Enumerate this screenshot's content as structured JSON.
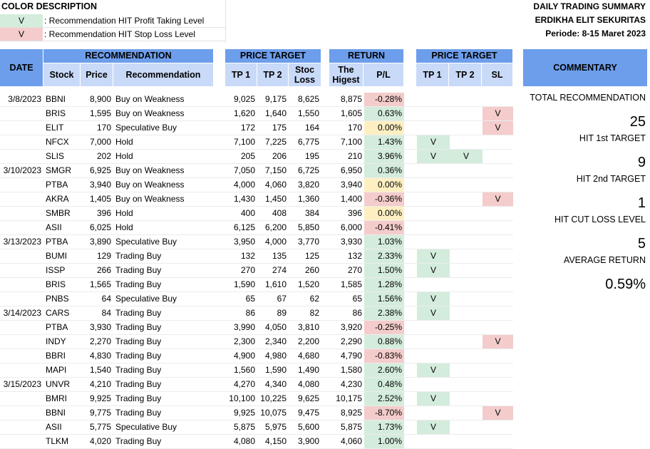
{
  "legend": {
    "title": "COLOR DESCRIPTION",
    "items": [
      {
        "mark": "V",
        "text": ": Recommendation HIT Profit Taking Level",
        "color": "#d4ecdc"
      },
      {
        "mark": "V",
        "text": ": Recommendation HIT Stop Loss Level",
        "color": "#f4cccc"
      }
    ]
  },
  "report": {
    "title": "DAILY TRADING SUMMARY",
    "company": "ERDIKHA ELIT SEKURITAS",
    "period": "Periode: 8-15 Maret 2023"
  },
  "headers": {
    "date": "DATE",
    "recommendation": "RECOMMENDATION",
    "stock": "Stock",
    "price": "Price",
    "rec": "Recommendation",
    "price_target": "PRICE TARGET",
    "tp1": "TP 1",
    "tp2": "TP 2",
    "stop_loss": "Stoc Loss",
    "return": "RETURN",
    "highest": "The Higest",
    "pl": "P/L",
    "price_target2": "PRICE TARGET",
    "tp1b": "TP 1",
    "tp2b": "TP 2",
    "sl": "SL",
    "commentary": "COMMENTARY"
  },
  "rows": [
    {
      "date": "3/8/2023",
      "stock": "BBNI",
      "price": "8,900",
      "rec": "Buy on Weakness",
      "tp1": "9,025",
      "tp2": "9,175",
      "sl": "8,625",
      "high": "8,875",
      "pl": "-0.28%",
      "plc": "red",
      "h1": "",
      "h2": "",
      "hs": ""
    },
    {
      "date": "",
      "stock": "BRIS",
      "price": "1,595",
      "rec": "Buy on Weakness",
      "tp1": "1,620",
      "tp2": "1,640",
      "sl": "1,550",
      "high": "1,605",
      "pl": "0.63%",
      "plc": "green",
      "h1": "",
      "h2": "",
      "hs": "V"
    },
    {
      "date": "",
      "stock": "ELIT",
      "price": "170",
      "rec": "Speculative Buy",
      "tp1": "172",
      "tp2": "175",
      "sl": "164",
      "high": "170",
      "pl": "0.00%",
      "plc": "yellow",
      "h1": "",
      "h2": "",
      "hs": "V"
    },
    {
      "date": "",
      "stock": "NFCX",
      "price": "7,000",
      "rec": "Hold",
      "tp1": "7,100",
      "tp2": "7,225",
      "sl": "6,775",
      "high": "7,100",
      "pl": "1.43%",
      "plc": "green",
      "h1": "V",
      "h2": "",
      "hs": ""
    },
    {
      "date": "",
      "stock": "SLIS",
      "price": "202",
      "rec": "Hold",
      "tp1": "205",
      "tp2": "206",
      "sl": "195",
      "high": "210",
      "pl": "3.96%",
      "plc": "green",
      "h1": "V",
      "h2": "V",
      "hs": ""
    },
    {
      "date": "3/10/2023",
      "stock": "SMGR",
      "price": "6,925",
      "rec": "Buy on Weakness",
      "tp1": "7,050",
      "tp2": "7,150",
      "sl": "6,725",
      "high": "6,950",
      "pl": "0.36%",
      "plc": "green",
      "h1": "",
      "h2": "",
      "hs": ""
    },
    {
      "date": "",
      "stock": "PTBA",
      "price": "3,940",
      "rec": "Buy on Weakness",
      "tp1": "4,000",
      "tp2": "4,060",
      "sl": "3,820",
      "high": "3,940",
      "pl": "0.00%",
      "plc": "yellow",
      "h1": "",
      "h2": "",
      "hs": ""
    },
    {
      "date": "",
      "stock": "AKRA",
      "price": "1,405",
      "rec": "Buy on Weakness",
      "tp1": "1,430",
      "tp2": "1,450",
      "sl": "1,360",
      "high": "1,400",
      "pl": "-0.36%",
      "plc": "red",
      "h1": "",
      "h2": "",
      "hs": "V"
    },
    {
      "date": "",
      "stock": "SMBR",
      "price": "396",
      "rec": "Hold",
      "tp1": "400",
      "tp2": "408",
      "sl": "384",
      "high": "396",
      "pl": "0.00%",
      "plc": "yellow",
      "h1": "",
      "h2": "",
      "hs": ""
    },
    {
      "date": "",
      "stock": "ASII",
      "price": "6,025",
      "rec": "Hold",
      "tp1": "6,125",
      "tp2": "6,200",
      "sl": "5,850",
      "high": "6,000",
      "pl": "-0.41%",
      "plc": "red",
      "h1": "",
      "h2": "",
      "hs": ""
    },
    {
      "date": "3/13/2023",
      "stock": "PTBA",
      "price": "3,890",
      "rec": "Speculative Buy",
      "tp1": "3,950",
      "tp2": "4,000",
      "sl": "3,770",
      "high": "3,930",
      "pl": "1.03%",
      "plc": "green",
      "h1": "",
      "h2": "",
      "hs": ""
    },
    {
      "date": "",
      "stock": "BUMI",
      "price": "129",
      "rec": "Trading Buy",
      "tp1": "132",
      "tp2": "135",
      "sl": "125",
      "high": "132",
      "pl": "2.33%",
      "plc": "green",
      "h1": "V",
      "h2": "",
      "hs": ""
    },
    {
      "date": "",
      "stock": "ISSP",
      "price": "266",
      "rec": "Trading Buy",
      "tp1": "270",
      "tp2": "274",
      "sl": "260",
      "high": "270",
      "pl": "1.50%",
      "plc": "green",
      "h1": "V",
      "h2": "",
      "hs": ""
    },
    {
      "date": "",
      "stock": "BRIS",
      "price": "1,565",
      "rec": "Trading Buy",
      "tp1": "1,590",
      "tp2": "1,610",
      "sl": "1,520",
      "high": "1,585",
      "pl": "1.28%",
      "plc": "green",
      "h1": "",
      "h2": "",
      "hs": ""
    },
    {
      "date": "",
      "stock": "PNBS",
      "price": "64",
      "rec": "Speculative Buy",
      "tp1": "65",
      "tp2": "67",
      "sl": "62",
      "high": "65",
      "pl": "1.56%",
      "plc": "green",
      "h1": "V",
      "h2": "",
      "hs": ""
    },
    {
      "date": "3/14/2023",
      "stock": "CARS",
      "price": "84",
      "rec": "Trading Buy",
      "tp1": "86",
      "tp2": "89",
      "sl": "82",
      "high": "86",
      "pl": "2.38%",
      "plc": "green",
      "h1": "V",
      "h2": "",
      "hs": ""
    },
    {
      "date": "",
      "stock": "PTBA",
      "price": "3,930",
      "rec": "Trading Buy",
      "tp1": "3,990",
      "tp2": "4,050",
      "sl": "3,810",
      "high": "3,920",
      "pl": "-0.25%",
      "plc": "red",
      "h1": "",
      "h2": "",
      "hs": ""
    },
    {
      "date": "",
      "stock": "INDY",
      "price": "2,270",
      "rec": "Trading Buy",
      "tp1": "2,300",
      "tp2": "2,340",
      "sl": "2,200",
      "high": "2,290",
      "pl": "0.88%",
      "plc": "green",
      "h1": "",
      "h2": "",
      "hs": "V"
    },
    {
      "date": "",
      "stock": "BBRI",
      "price": "4,830",
      "rec": "Trading Buy",
      "tp1": "4,900",
      "tp2": "4,980",
      "sl": "4,680",
      "high": "4,790",
      "pl": "-0.83%",
      "plc": "red",
      "h1": "",
      "h2": "",
      "hs": ""
    },
    {
      "date": "",
      "stock": "MAPI",
      "price": "1,540",
      "rec": "Trading Buy",
      "tp1": "1,560",
      "tp2": "1,590",
      "sl": "1,490",
      "high": "1,580",
      "pl": "2.60%",
      "plc": "green",
      "h1": "V",
      "h2": "",
      "hs": ""
    },
    {
      "date": "3/15/2023",
      "stock": "UNVR",
      "price": "4,210",
      "rec": "Trading Buy",
      "tp1": "4,270",
      "tp2": "4,340",
      "sl": "4,080",
      "high": "4,230",
      "pl": "0.48%",
      "plc": "green",
      "h1": "",
      "h2": "",
      "hs": ""
    },
    {
      "date": "",
      "stock": "BMRI",
      "price": "9,925",
      "rec": "Trading Buy",
      "tp1": "10,100",
      "tp2": "10,225",
      "sl": "9,625",
      "high": "10,175",
      "pl": "2.52%",
      "plc": "green",
      "h1": "V",
      "h2": "",
      "hs": ""
    },
    {
      "date": "",
      "stock": "BBNI",
      "price": "9,775",
      "rec": "Trading Buy",
      "tp1": "9,925",
      "tp2": "10,075",
      "sl": "9,475",
      "high": "8,925",
      "pl": "-8.70%",
      "plc": "red",
      "h1": "",
      "h2": "",
      "hs": "V"
    },
    {
      "date": "",
      "stock": "ASII",
      "price": "5,775",
      "rec": "Speculative Buy",
      "tp1": "5,875",
      "tp2": "5,975",
      "sl": "5,600",
      "high": "5,875",
      "pl": "1.73%",
      "plc": "green",
      "h1": "V",
      "h2": "",
      "hs": ""
    },
    {
      "date": "",
      "stock": "TLKM",
      "price": "4,020",
      "rec": "Trading Buy",
      "tp1": "4,080",
      "tp2": "4,150",
      "sl": "3,900",
      "high": "4,060",
      "pl": "1.00%",
      "plc": "green",
      "h1": "",
      "h2": "",
      "hs": ""
    }
  ],
  "commentary": {
    "total_label": "TOTAL RECOMMENDATION",
    "total_value": "25",
    "hit1_label": "HIT 1st TARGET",
    "hit1_value": "9",
    "hit2_label": "HIT 2nd TARGET",
    "hit2_value": "1",
    "cut_label": "HIT CUT LOSS LEVEL",
    "cut_value": "5",
    "avg_label": "AVERAGE RETURN",
    "avg_value": "0.59%"
  },
  "colors": {
    "header": "#6d9eeb",
    "subheader": "#c9daf8",
    "profit": "#d4ecdc",
    "loss": "#f4cccc",
    "neutral": "#fdefc2"
  }
}
